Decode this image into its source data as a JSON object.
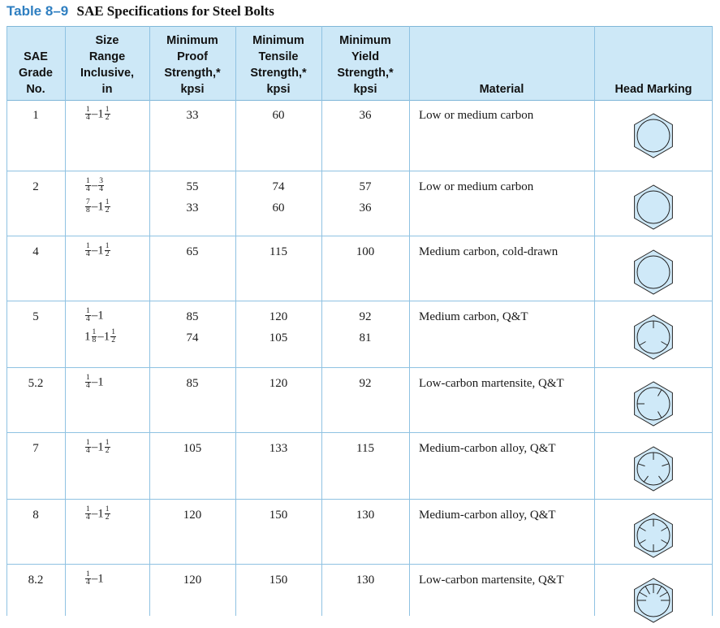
{
  "table": {
    "number": "Table 8–9",
    "title": "SAE Specifications for Steel Bolts",
    "headers": {
      "grade": "SAE\nGrade\nNo.",
      "size": "Size\nRange\nInclusive,\nin",
      "proof": "Minimum\nProof\nStrength,*\nkpsi",
      "tensile": "Minimum\nTensile\nStrength,*\nkpsi",
      "yield": "Minimum\nYield\nStrength,*\nkpsi",
      "material": "Material",
      "marking": "Head Marking"
    },
    "rows": [
      {
        "grade": "1",
        "sizes": [
          {
            "a": "1/4",
            "b": "1 1/2"
          }
        ],
        "proof": [
          "33"
        ],
        "tensile": [
          "60"
        ],
        "yield": [
          "36"
        ],
        "material": "Low or medium carbon",
        "marking": "plain"
      },
      {
        "grade": "2",
        "sizes": [
          {
            "a": "1/4",
            "b": "3/4"
          },
          {
            "a": "7/8",
            "b": "1 1/2"
          }
        ],
        "proof": [
          "55",
          "33"
        ],
        "tensile": [
          "74",
          "60"
        ],
        "yield": [
          "57",
          "36"
        ],
        "material": "Low or medium carbon",
        "marking": "plain"
      },
      {
        "grade": "4",
        "sizes": [
          {
            "a": "1/4",
            "b": "1 1/2"
          }
        ],
        "proof": [
          "65"
        ],
        "tensile": [
          "115"
        ],
        "yield": [
          "100"
        ],
        "material": "Medium carbon, cold-drawn",
        "marking": "plain"
      },
      {
        "grade": "5",
        "sizes": [
          {
            "a": "1/4",
            "b": "1"
          },
          {
            "a": "1 1/8",
            "b": "1 1/2"
          }
        ],
        "proof": [
          "85",
          "74"
        ],
        "tensile": [
          "120",
          "105"
        ],
        "yield": [
          "92",
          "81"
        ],
        "material": "Medium carbon, Q&T",
        "marking": "3-radial-lines"
      },
      {
        "grade": "5.2",
        "sizes": [
          {
            "a": "1/4",
            "b": "1"
          }
        ],
        "proof": [
          "85"
        ],
        "tensile": [
          "120"
        ],
        "yield": [
          "92"
        ],
        "material": "Low-carbon martensite, Q&T",
        "marking": "3-radial-lines-offset"
      },
      {
        "grade": "7",
        "sizes": [
          {
            "a": "1/4",
            "b": "1 1/2"
          }
        ],
        "proof": [
          "105"
        ],
        "tensile": [
          "133"
        ],
        "yield": [
          "115"
        ],
        "material": "Medium-carbon alloy, Q&T",
        "marking": "5-radial-lines"
      },
      {
        "grade": "8",
        "sizes": [
          {
            "a": "1/4",
            "b": "1 1/2"
          }
        ],
        "proof": [
          "120"
        ],
        "tensile": [
          "150"
        ],
        "yield": [
          "130"
        ],
        "material": "Medium-carbon alloy, Q&T",
        "marking": "6-radial-lines"
      },
      {
        "grade": "8.2",
        "sizes": [
          {
            "a": "1/4",
            "b": "1"
          }
        ],
        "proof": [
          "120"
        ],
        "tensile": [
          "150"
        ],
        "yield": [
          "130"
        ],
        "material": "Low-carbon martensite, Q&T",
        "marking": "sunburst-lines"
      }
    ]
  }
}
